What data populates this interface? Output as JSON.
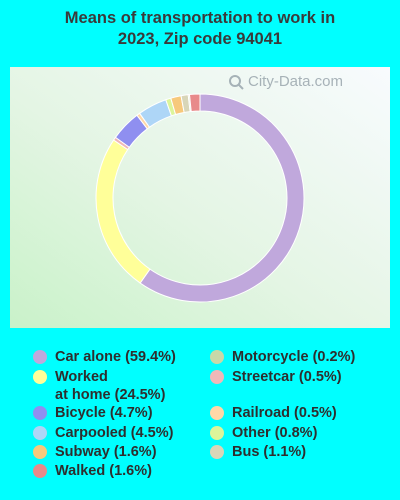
{
  "title_line1": "Means of transportation to work in",
  "title_line2": "2023, Zip code 94041",
  "watermark": "City-Data.com",
  "chart_data": {
    "type": "donut",
    "title": "Means of transportation to work in 2023, Zip code 94041",
    "slices": [
      {
        "label": "Car alone",
        "value": 59.4,
        "color": "#c0a8dc"
      },
      {
        "label": "Worked at home",
        "value": 24.5,
        "color": "#ffff99"
      },
      {
        "label": "Streetcar",
        "value": 0.5,
        "color": "#f0b8b8"
      },
      {
        "label": "Bicycle",
        "value": 4.7,
        "color": "#8f8ff0"
      },
      {
        "label": "Railroad",
        "value": 0.5,
        "color": "#ffd8a8"
      },
      {
        "label": "Carpooled",
        "value": 4.5,
        "color": "#aed6f7"
      },
      {
        "label": "Other",
        "value": 0.8,
        "color": "#dcf59a"
      },
      {
        "label": "Subway",
        "value": 1.6,
        "color": "#f7c97c"
      },
      {
        "label": "Bus",
        "value": 1.1,
        "color": "#d8d6b8"
      },
      {
        "label": "Motorcycle",
        "value": 0.2,
        "color": "#c8d8a8"
      },
      {
        "label": "Walked",
        "value": 1.6,
        "color": "#e88a8a"
      }
    ]
  },
  "legend": [
    {
      "text": "Car alone (59.4%)",
      "color": "#c0a8dc"
    },
    {
      "text": "Worked\nat home (24.5%)",
      "color": "#ffff99"
    },
    {
      "text": "Bicycle (4.7%)",
      "color": "#8f8ff0"
    },
    {
      "text": "Carpooled (4.5%)",
      "color": "#aed6f7"
    },
    {
      "text": "Subway (1.6%)",
      "color": "#f7c97c"
    },
    {
      "text": "Walked (1.6%)",
      "color": "#e88a8a"
    },
    {
      "text": "Motorcycle (0.2%)",
      "color": "#c8d8a8"
    },
    {
      "text": "Streetcar (0.5%)",
      "color": "#f0b8b8"
    },
    {
      "text": "Railroad (0.5%)",
      "color": "#ffd8a8"
    },
    {
      "text": "Other (0.8%)",
      "color": "#dcf59a"
    },
    {
      "text": "Bus (1.1%)",
      "color": "#d8d6b8"
    }
  ]
}
